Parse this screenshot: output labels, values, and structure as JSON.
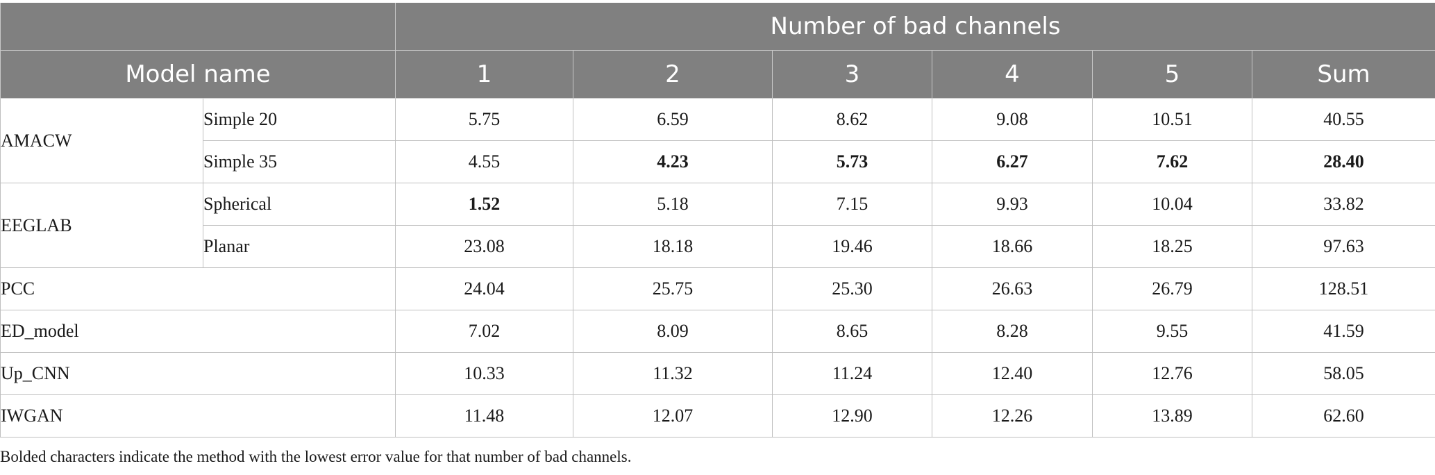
{
  "table": {
    "group_header": "Number of bad channels",
    "model_header": "Model name",
    "columns": [
      "1",
      "2",
      "3",
      "4",
      "5",
      "Sum"
    ],
    "rows": [
      {
        "model": "AMACW",
        "variant": "Simple 20",
        "values": [
          "5.75",
          "6.59",
          "8.62",
          "9.08",
          "10.51",
          "40.55"
        ],
        "bold": [
          false,
          false,
          false,
          false,
          false,
          false
        ]
      },
      {
        "model": "",
        "variant": "Simple 35",
        "values": [
          "4.55",
          "4.23",
          "5.73",
          "6.27",
          "7.62",
          "28.40"
        ],
        "bold": [
          false,
          true,
          true,
          true,
          true,
          true
        ]
      },
      {
        "model": "EEGLAB",
        "variant": "Spherical",
        "values": [
          "1.52",
          "5.18",
          "7.15",
          "9.93",
          "10.04",
          "33.82"
        ],
        "bold": [
          true,
          false,
          false,
          false,
          false,
          false
        ]
      },
      {
        "model": "",
        "variant": "Planar",
        "values": [
          "23.08",
          "18.18",
          "19.46",
          "18.66",
          "18.25",
          "97.63"
        ],
        "bold": [
          false,
          false,
          false,
          false,
          false,
          false
        ]
      },
      {
        "model": "PCC",
        "variant": "",
        "values": [
          "24.04",
          "25.75",
          "25.30",
          "26.63",
          "26.79",
          "128.51"
        ],
        "bold": [
          false,
          false,
          false,
          false,
          false,
          false
        ]
      },
      {
        "model": "ED_model",
        "variant": "",
        "values": [
          "7.02",
          "8.09",
          "8.65",
          "8.28",
          "9.55",
          "41.59"
        ],
        "bold": [
          false,
          false,
          false,
          false,
          false,
          false
        ]
      },
      {
        "model": "Up_CNN",
        "variant": "",
        "values": [
          "10.33",
          "11.32",
          "11.24",
          "12.40",
          "12.76",
          "58.05"
        ],
        "bold": [
          false,
          false,
          false,
          false,
          false,
          false
        ]
      },
      {
        "model": "IWGAN",
        "variant": "",
        "values": [
          "11.48",
          "12.07",
          "12.90",
          "12.26",
          "13.89",
          "62.60"
        ],
        "bold": [
          false,
          false,
          false,
          false,
          false,
          false
        ]
      }
    ]
  },
  "footnote": "Bolded characters indicate the method with the lowest error value for that number of bad channels.",
  "colors": {
    "header_bg": "#808080",
    "header_text": "#ffffff",
    "border": "#bfbfbf"
  }
}
